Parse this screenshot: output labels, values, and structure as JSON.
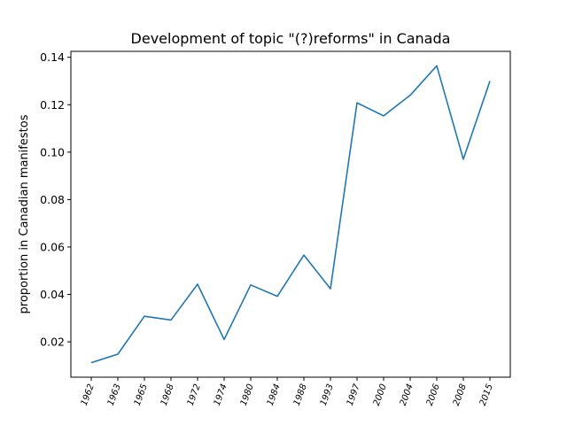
{
  "chart_data": {
    "type": "line",
    "title": "Development of topic \"(?)reforms\" in Canada",
    "xlabel": "",
    "ylabel": "proportion in Canadian manifestos",
    "categories": [
      "1962",
      "1963",
      "1965",
      "1968",
      "1972",
      "1974",
      "1980",
      "1984",
      "1988",
      "1993",
      "1997",
      "2000",
      "2004",
      "2006",
      "2008",
      "2015"
    ],
    "series": [
      {
        "color": "#1f77b4",
        "values": [
          0.0112,
          0.0148,
          0.0308,
          0.0292,
          0.0443,
          0.021,
          0.044,
          0.0392,
          0.0566,
          0.0424,
          0.1208,
          0.1153,
          0.124,
          0.1364,
          0.097,
          0.13
        ]
      }
    ],
    "yticks": [
      "0.02",
      "0.04",
      "0.06",
      "0.08",
      "0.10",
      "0.12",
      "0.14"
    ],
    "ylim": [
      0.0051,
      0.1425
    ],
    "grid": false
  }
}
